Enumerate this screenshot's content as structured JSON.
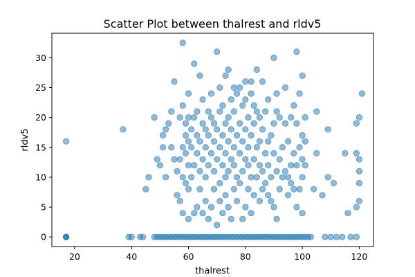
{
  "chart_data": {
    "type": "scatter",
    "title": "Scatter Plot between thalrest and rldv5",
    "xlabel": "thalrest",
    "ylabel": "rldv5",
    "xlim": [
      12,
      125
    ],
    "ylim": [
      -1.6,
      34.1
    ],
    "xticks": [
      20,
      40,
      60,
      80,
      100,
      120
    ],
    "yticks": [
      0,
      5,
      10,
      15,
      20,
      25,
      30
    ],
    "grid": false,
    "legend": "none",
    "marker_color": "#1f77b4",
    "marker_alpha": 0.5,
    "series": [
      {
        "points": [
          [
            17,
            0
          ],
          [
            17,
            0
          ],
          [
            17,
            0
          ],
          [
            17,
            16
          ],
          [
            37,
            18
          ],
          [
            39,
            0
          ],
          [
            40,
            0
          ],
          [
            43,
            0
          ],
          [
            44,
            0
          ],
          [
            45,
            8
          ],
          [
            46,
            10
          ],
          [
            48,
            20
          ],
          [
            49,
            13
          ],
          [
            50,
            12
          ],
          [
            51,
            15
          ],
          [
            51,
            17
          ],
          [
            52,
            18
          ],
          [
            52,
            10
          ],
          [
            53,
            19
          ],
          [
            54,
            15
          ],
          [
            54,
            21
          ],
          [
            55,
            13
          ],
          [
            55,
            26
          ],
          [
            56,
            7
          ],
          [
            56,
            11
          ],
          [
            57,
            6
          ],
          [
            57,
            13
          ],
          [
            57,
            20
          ],
          [
            58,
            4
          ],
          [
            58,
            10
          ],
          [
            58,
            15
          ],
          [
            58,
            22
          ],
          [
            58,
            32.5
          ],
          [
            59,
            9
          ],
          [
            59,
            14
          ],
          [
            59,
            17
          ],
          [
            59,
            19
          ],
          [
            60,
            3
          ],
          [
            60,
            8
          ],
          [
            60,
            12
          ],
          [
            60,
            16
          ],
          [
            60,
            20
          ],
          [
            60,
            24
          ],
          [
            61,
            10
          ],
          [
            61,
            15
          ],
          [
            61,
            18
          ],
          [
            62,
            4
          ],
          [
            62,
            12
          ],
          [
            62,
            20
          ],
          [
            62,
            29
          ],
          [
            63,
            5
          ],
          [
            63,
            14
          ],
          [
            63,
            17
          ],
          [
            63,
            21
          ],
          [
            64,
            8
          ],
          [
            64,
            11
          ],
          [
            64,
            16
          ],
          [
            64,
            27
          ],
          [
            65,
            4
          ],
          [
            65,
            13
          ],
          [
            65,
            19
          ],
          [
            65,
            23
          ],
          [
            66,
            6
          ],
          [
            66,
            10
          ],
          [
            66,
            15
          ],
          [
            66,
            18
          ],
          [
            67,
            3
          ],
          [
            67,
            12
          ],
          [
            67,
            17
          ],
          [
            67,
            21
          ],
          [
            68,
            5
          ],
          [
            68,
            14
          ],
          [
            68,
            20
          ],
          [
            68,
            24
          ],
          [
            69,
            8
          ],
          [
            69,
            11
          ],
          [
            69,
            16
          ],
          [
            69,
            19
          ],
          [
            70,
            2
          ],
          [
            70,
            13
          ],
          [
            70,
            18
          ],
          [
            70,
            31
          ],
          [
            71,
            6
          ],
          [
            71,
            9
          ],
          [
            71,
            15
          ],
          [
            71,
            21
          ],
          [
            71,
            25
          ],
          [
            72,
            4
          ],
          [
            72,
            12
          ],
          [
            72,
            17
          ],
          [
            72,
            22
          ],
          [
            73,
            7
          ],
          [
            73,
            10
          ],
          [
            73,
            14
          ],
          [
            73,
            19
          ],
          [
            73,
            27
          ],
          [
            74,
            5
          ],
          [
            74,
            11
          ],
          [
            74,
            16
          ],
          [
            74,
            20
          ],
          [
            74,
            28
          ],
          [
            75,
            3
          ],
          [
            75,
            13
          ],
          [
            75,
            18
          ],
          [
            75,
            23
          ],
          [
            76,
            8
          ],
          [
            76,
            12
          ],
          [
            76,
            15
          ],
          [
            76,
            21
          ],
          [
            76,
            25
          ],
          [
            77,
            6
          ],
          [
            77,
            10
          ],
          [
            77,
            17
          ],
          [
            77,
            24
          ],
          [
            78,
            9
          ],
          [
            78,
            14
          ],
          [
            78,
            19
          ],
          [
            78,
            25
          ],
          [
            79,
            3
          ],
          [
            79,
            11
          ],
          [
            79,
            16
          ],
          [
            79,
            22
          ],
          [
            80,
            5
          ],
          [
            80,
            13
          ],
          [
            80,
            18
          ],
          [
            80,
            23
          ],
          [
            80,
            26
          ],
          [
            81,
            8
          ],
          [
            81,
            12
          ],
          [
            81,
            15
          ],
          [
            81,
            20
          ],
          [
            82,
            4
          ],
          [
            82,
            10
          ],
          [
            82,
            17
          ],
          [
            82,
            24
          ],
          [
            82,
            26
          ],
          [
            83,
            7
          ],
          [
            83,
            13
          ],
          [
            83,
            19
          ],
          [
            83,
            22
          ],
          [
            84,
            10
          ],
          [
            84,
            15
          ],
          [
            84,
            21
          ],
          [
            84,
            28
          ],
          [
            85,
            6
          ],
          [
            85,
            12
          ],
          [
            85,
            16
          ],
          [
            85,
            20
          ],
          [
            86,
            8
          ],
          [
            86,
            11
          ],
          [
            86,
            18
          ],
          [
            86,
            26
          ],
          [
            87,
            9
          ],
          [
            87,
            14
          ],
          [
            87,
            21
          ],
          [
            88,
            7
          ],
          [
            88,
            12
          ],
          [
            88,
            16
          ],
          [
            88,
            23
          ],
          [
            89,
            6
          ],
          [
            89,
            10
          ],
          [
            89,
            17
          ],
          [
            90,
            5
          ],
          [
            90,
            14
          ],
          [
            90,
            19
          ],
          [
            90,
            30
          ],
          [
            91,
            3
          ],
          [
            91,
            11
          ],
          [
            91,
            21
          ],
          [
            91,
            24
          ],
          [
            92,
            8
          ],
          [
            92,
            13
          ],
          [
            92,
            20
          ],
          [
            93,
            10
          ],
          [
            93,
            15
          ],
          [
            94,
            11
          ],
          [
            94,
            19
          ],
          [
            94,
            25
          ],
          [
            95,
            7
          ],
          [
            95,
            10
          ],
          [
            95,
            16
          ],
          [
            96,
            9
          ],
          [
            96,
            12
          ],
          [
            96,
            20
          ],
          [
            97,
            8
          ],
          [
            97,
            14
          ],
          [
            97,
            22
          ],
          [
            98,
            5
          ],
          [
            98,
            12
          ],
          [
            98,
            19
          ],
          [
            98,
            31
          ],
          [
            99,
            8
          ],
          [
            99,
            15
          ],
          [
            99,
            24
          ],
          [
            100,
            4
          ],
          [
            100,
            10
          ],
          [
            100,
            13
          ],
          [
            100,
            17
          ],
          [
            100,
            27
          ],
          [
            101,
            12
          ],
          [
            101,
            16
          ],
          [
            101,
            20
          ],
          [
            103,
            0
          ],
          [
            104,
            8
          ],
          [
            105,
            14
          ],
          [
            105,
            21
          ],
          [
            107,
            7
          ],
          [
            108,
            0
          ],
          [
            109,
            10
          ],
          [
            109,
            18
          ],
          [
            110,
            0
          ],
          [
            111,
            9
          ],
          [
            112,
            0
          ],
          [
            114,
            0
          ],
          [
            115,
            14
          ],
          [
            116,
            4
          ],
          [
            117,
            0
          ],
          [
            119,
            0
          ],
          [
            119,
            5
          ],
          [
            119,
            14
          ],
          [
            119,
            19
          ],
          [
            120,
            6
          ],
          [
            120,
            9
          ],
          [
            120,
            11
          ],
          [
            120,
            13
          ],
          [
            120,
            20
          ],
          [
            121,
            24
          ]
        ]
      }
    ],
    "zero_band_x": [
      48,
      102
    ],
    "zero_band_step": 1
  }
}
